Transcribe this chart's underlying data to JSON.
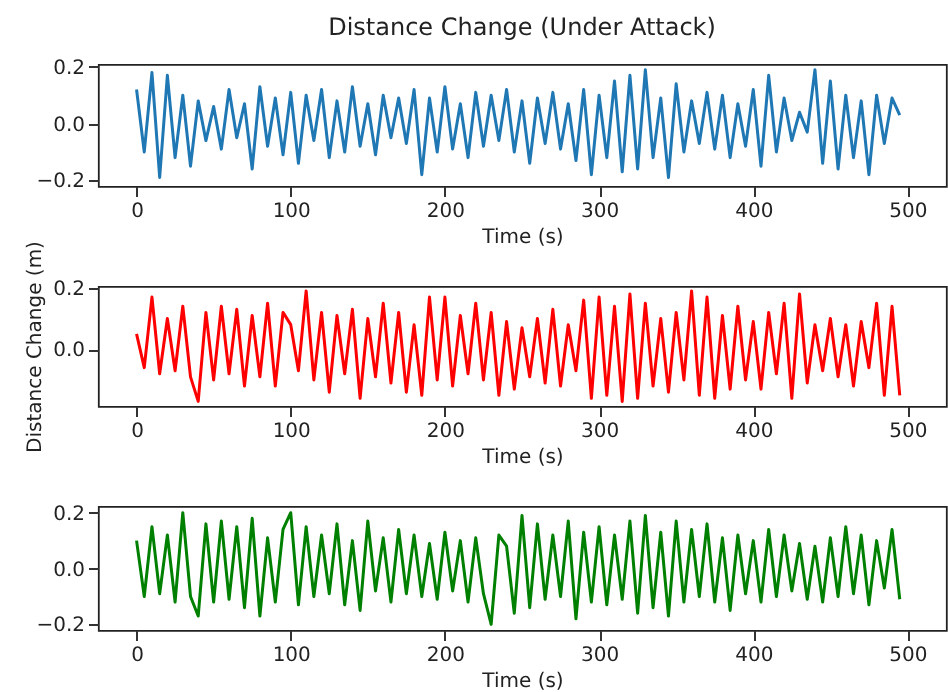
{
  "chart_data": [
    {
      "type": "line",
      "title": "Distance Change (Under Attack)",
      "xlabel": "Time (s)",
      "x": [
        0,
        5,
        10,
        15,
        20,
        25,
        30,
        35,
        40,
        45,
        50,
        55,
        60,
        65,
        70,
        75,
        80,
        85,
        90,
        95,
        100,
        105,
        110,
        115,
        120,
        125,
        130,
        135,
        140,
        145,
        150,
        155,
        160,
        165,
        170,
        175,
        180,
        185,
        190,
        195,
        200,
        205,
        210,
        215,
        220,
        225,
        230,
        235,
        240,
        245,
        250,
        255,
        260,
        265,
        270,
        275,
        280,
        285,
        290,
        295,
        300,
        305,
        310,
        315,
        320,
        325,
        330,
        335,
        340,
        345,
        350,
        355,
        360,
        365,
        370,
        375,
        380,
        385,
        390,
        395,
        400,
        405,
        410,
        415,
        420,
        425,
        430,
        435,
        440,
        445,
        450,
        455,
        460,
        465,
        470,
        475,
        480,
        485,
        490,
        495
      ],
      "series": [
        {
          "color": "#1f77b4",
          "values": [
            0.12,
            -0.1,
            0.18,
            -0.19,
            0.17,
            -0.12,
            0.1,
            -0.15,
            0.08,
            -0.06,
            0.06,
            -0.09,
            0.12,
            -0.05,
            0.07,
            -0.16,
            0.13,
            -0.08,
            0.09,
            -0.11,
            0.11,
            -0.14,
            0.1,
            -0.06,
            0.12,
            -0.12,
            0.08,
            -0.1,
            0.13,
            -0.08,
            0.07,
            -0.11,
            0.1,
            -0.05,
            0.09,
            -0.07,
            0.12,
            -0.18,
            0.09,
            -0.1,
            0.13,
            -0.09,
            0.07,
            -0.12,
            0.11,
            -0.08,
            0.1,
            -0.06,
            0.12,
            -0.1,
            0.08,
            -0.14,
            0.09,
            -0.07,
            0.11,
            -0.09,
            0.07,
            -0.13,
            0.12,
            -0.18,
            0.1,
            -0.12,
            0.15,
            -0.17,
            0.17,
            -0.16,
            0.19,
            -0.12,
            0.09,
            -0.19,
            0.14,
            -0.1,
            0.08,
            -0.07,
            0.11,
            -0.09,
            0.1,
            -0.12,
            0.07,
            -0.08,
            0.12,
            -0.15,
            0.17,
            -0.1,
            0.09,
            -0.06,
            0.04,
            -0.03,
            0.19,
            -0.14,
            0.15,
            -0.16,
            0.1,
            -0.12,
            0.08,
            -0.18,
            0.1,
            -0.07,
            0.09,
            0.03
          ]
        }
      ],
      "xlim": [
        -25,
        525
      ],
      "xticks": [
        0,
        100,
        200,
        300,
        400,
        500
      ],
      "ylim": [
        -0.22,
        0.21
      ],
      "yticks": [
        {
          "value": -0.2,
          "label": "−0.2"
        },
        {
          "value": 0,
          "label": "0.0"
        },
        {
          "value": 0.2,
          "label": "0.2"
        }
      ],
      "grid": false
    },
    {
      "type": "line",
      "xlabel": "Time (s)",
      "ylabel": "Distance Change (m)",
      "x": [
        0,
        5,
        10,
        15,
        20,
        25,
        30,
        35,
        40,
        45,
        50,
        55,
        60,
        65,
        70,
        75,
        80,
        85,
        90,
        95,
        100,
        105,
        110,
        115,
        120,
        125,
        130,
        135,
        140,
        145,
        150,
        155,
        160,
        165,
        170,
        175,
        180,
        185,
        190,
        195,
        200,
        205,
        210,
        215,
        220,
        225,
        230,
        235,
        240,
        245,
        250,
        255,
        260,
        265,
        270,
        275,
        280,
        285,
        290,
        295,
        300,
        305,
        310,
        315,
        320,
        325,
        330,
        335,
        340,
        345,
        350,
        355,
        360,
        365,
        370,
        375,
        380,
        385,
        390,
        395,
        400,
        405,
        410,
        415,
        420,
        425,
        430,
        435,
        440,
        445,
        450,
        455,
        460,
        465,
        470,
        475,
        480,
        485,
        490,
        495
      ],
      "series": [
        {
          "color": "#ff0000",
          "values": [
            0.05,
            -0.06,
            0.17,
            -0.08,
            0.1,
            -0.07,
            0.14,
            -0.09,
            -0.17,
            0.12,
            -0.1,
            0.14,
            -0.08,
            0.13,
            -0.12,
            0.11,
            -0.09,
            0.15,
            -0.12,
            0.12,
            0.08,
            -0.07,
            0.19,
            -0.1,
            0.12,
            -0.14,
            0.11,
            -0.08,
            0.13,
            -0.16,
            0.1,
            -0.09,
            0.15,
            -0.11,
            0.12,
            -0.14,
            0.08,
            -0.15,
            0.17,
            -0.1,
            0.17,
            -0.12,
            0.11,
            -0.08,
            0.15,
            -0.1,
            0.12,
            -0.15,
            0.09,
            -0.13,
            0.07,
            -0.09,
            0.1,
            -0.11,
            0.13,
            -0.12,
            0.08,
            -0.07,
            0.16,
            -0.16,
            0.17,
            -0.15,
            0.14,
            -0.17,
            0.18,
            -0.16,
            0.15,
            -0.12,
            0.1,
            -0.14,
            0.12,
            -0.1,
            0.19,
            -0.15,
            0.17,
            -0.16,
            0.11,
            -0.13,
            0.14,
            -0.1,
            0.09,
            -0.13,
            0.12,
            -0.08,
            0.15,
            -0.16,
            0.18,
            -0.11,
            0.08,
            -0.07,
            0.1,
            -0.09,
            0.08,
            -0.12,
            0.09,
            -0.06,
            0.15,
            -0.15,
            0.14,
            -0.15
          ]
        }
      ],
      "xlim": [
        -25,
        525
      ],
      "xticks": [
        0,
        100,
        200,
        300,
        400,
        500
      ],
      "ylim": [
        -0.185,
        0.206
      ],
      "yticks": [
        {
          "value": 0,
          "label": "0.0"
        },
        {
          "value": 0.2,
          "label": "0.2"
        }
      ],
      "grid": false
    },
    {
      "type": "line",
      "xlabel": "Time (s)",
      "x": [
        0,
        5,
        10,
        15,
        20,
        25,
        30,
        35,
        40,
        45,
        50,
        55,
        60,
        65,
        70,
        75,
        80,
        85,
        90,
        95,
        100,
        105,
        110,
        115,
        120,
        125,
        130,
        135,
        140,
        145,
        150,
        155,
        160,
        165,
        170,
        175,
        180,
        185,
        190,
        195,
        200,
        205,
        210,
        215,
        220,
        225,
        230,
        235,
        240,
        245,
        250,
        255,
        260,
        265,
        270,
        275,
        280,
        285,
        290,
        295,
        300,
        305,
        310,
        315,
        320,
        325,
        330,
        335,
        340,
        345,
        350,
        355,
        360,
        365,
        370,
        375,
        380,
        385,
        390,
        395,
        400,
        405,
        410,
        415,
        420,
        425,
        430,
        435,
        440,
        445,
        450,
        455,
        460,
        465,
        470,
        475,
        480,
        485,
        490,
        495
      ],
      "series": [
        {
          "color": "#008000",
          "values": [
            0.1,
            -0.1,
            0.15,
            -0.09,
            0.12,
            -0.12,
            0.2,
            -0.1,
            -0.17,
            0.16,
            -0.12,
            0.17,
            -0.11,
            0.15,
            -0.14,
            0.18,
            -0.17,
            0.11,
            -0.12,
            0.14,
            0.2,
            -0.13,
            0.15,
            -0.1,
            0.12,
            -0.09,
            0.16,
            -0.13,
            0.1,
            -0.15,
            0.17,
            -0.08,
            0.11,
            -0.12,
            0.14,
            -0.09,
            0.12,
            -0.1,
            0.09,
            -0.11,
            0.13,
            -0.08,
            0.1,
            -0.12,
            0.11,
            -0.09,
            -0.2,
            0.12,
            0.08,
            -0.16,
            0.19,
            -0.14,
            0.16,
            -0.11,
            0.12,
            -0.1,
            0.17,
            -0.18,
            0.13,
            -0.12,
            0.15,
            -0.13,
            0.12,
            -0.11,
            0.17,
            -0.16,
            0.19,
            -0.14,
            0.13,
            -0.17,
            0.17,
            -0.12,
            0.14,
            -0.1,
            0.16,
            -0.12,
            0.11,
            -0.15,
            0.12,
            -0.09,
            0.1,
            -0.12,
            0.14,
            -0.1,
            0.12,
            -0.08,
            0.09,
            -0.11,
            0.08,
            -0.12,
            0.11,
            -0.1,
            0.15,
            -0.09,
            0.12,
            -0.13,
            0.1,
            -0.07,
            0.14,
            -0.11
          ]
        }
      ],
      "xlim": [
        -25,
        525
      ],
      "xticks": [
        0,
        100,
        200,
        300,
        400,
        500
      ],
      "ylim": [
        -0.22,
        0.224
      ],
      "yticks": [
        {
          "value": -0.2,
          "label": "−0.2"
        },
        {
          "value": 0,
          "label": "0.0"
        },
        {
          "value": 0.2,
          "label": "0.2"
        }
      ],
      "grid": false
    }
  ]
}
